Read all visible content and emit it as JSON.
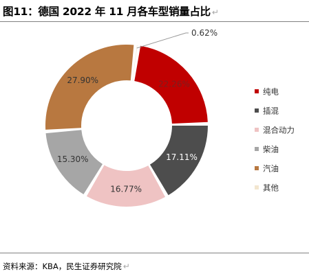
{
  "figure": {
    "title": "图11：德国 2022 年 11 月各车型销量占比",
    "paragraph_mark": "↵"
  },
  "source": {
    "text": "资料来源：KBA，民生证券研究院",
    "paragraph_mark": "↵"
  },
  "chart_data": {
    "type": "pie",
    "donut": true,
    "legend_position": "right",
    "categories": [
      "纯电",
      "插混",
      "混合动力",
      "柴油",
      "汽油",
      "其他"
    ],
    "values": [
      22.26,
      17.11,
      16.77,
      15.3,
      27.9,
      0.62
    ],
    "labels": [
      "22.26%",
      "17.11%",
      "16.77%",
      "15.30%",
      "27.90%",
      "0.62%"
    ],
    "colors": [
      "#c00000",
      "#4d4d4d",
      "#efc3c3",
      "#a6a6a6",
      "#b87840",
      "#f3e6cf"
    ],
    "label_colors": [
      "#7a1f1f",
      "#ffffff",
      "#333333",
      "#333333",
      "#333333",
      "#333333"
    ]
  }
}
